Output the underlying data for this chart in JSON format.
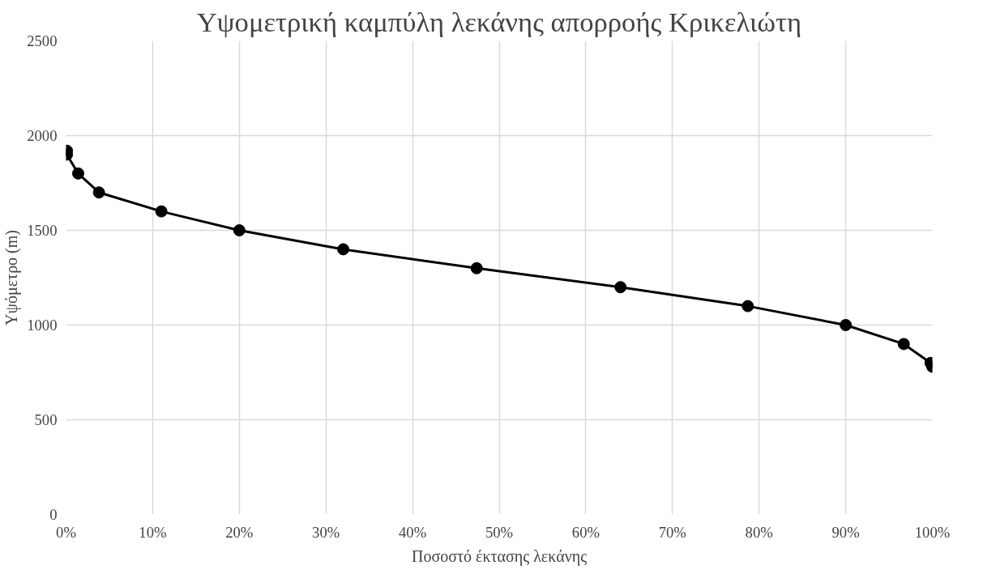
{
  "chart_data": {
    "type": "line",
    "title": "Υψομετρική καμπύλη λεκάνης απορροής Κρικελιώτη",
    "xlabel": "Ποσοστό έκτασης λεκάνης",
    "ylabel": "Υψόμετρο (m)",
    "x": [
      0.1,
      0.1,
      1.4,
      3.8,
      11,
      20,
      32,
      47.4,
      64,
      78.7,
      90,
      96.7,
      99.8,
      100
    ],
    "series": [
      {
        "color": "#000000",
        "values": [
          1920,
          1900,
          1800,
          1700,
          1600,
          1500,
          1400,
          1300,
          1200,
          1100,
          1000,
          900,
          800,
          780
        ]
      }
    ],
    "xlim": [
      0,
      100
    ],
    "xticks": [
      {
        "value": 0,
        "label": "0%"
      },
      {
        "value": 10,
        "label": "10%"
      },
      {
        "value": 20,
        "label": "20%"
      },
      {
        "value": 30,
        "label": "30%"
      },
      {
        "value": 40,
        "label": "40%"
      },
      {
        "value": 50,
        "label": "50%"
      },
      {
        "value": 60,
        "label": "60%"
      },
      {
        "value": 70,
        "label": "70%"
      },
      {
        "value": 80,
        "label": "80%"
      },
      {
        "value": 90,
        "label": "90%"
      },
      {
        "value": 100,
        "label": "100%"
      }
    ],
    "ylim": [
      0,
      2500
    ],
    "yticks": [
      0,
      500,
      1000,
      1500,
      2000,
      2500
    ],
    "grid": true,
    "marker": "circle",
    "line_style": "solid"
  }
}
